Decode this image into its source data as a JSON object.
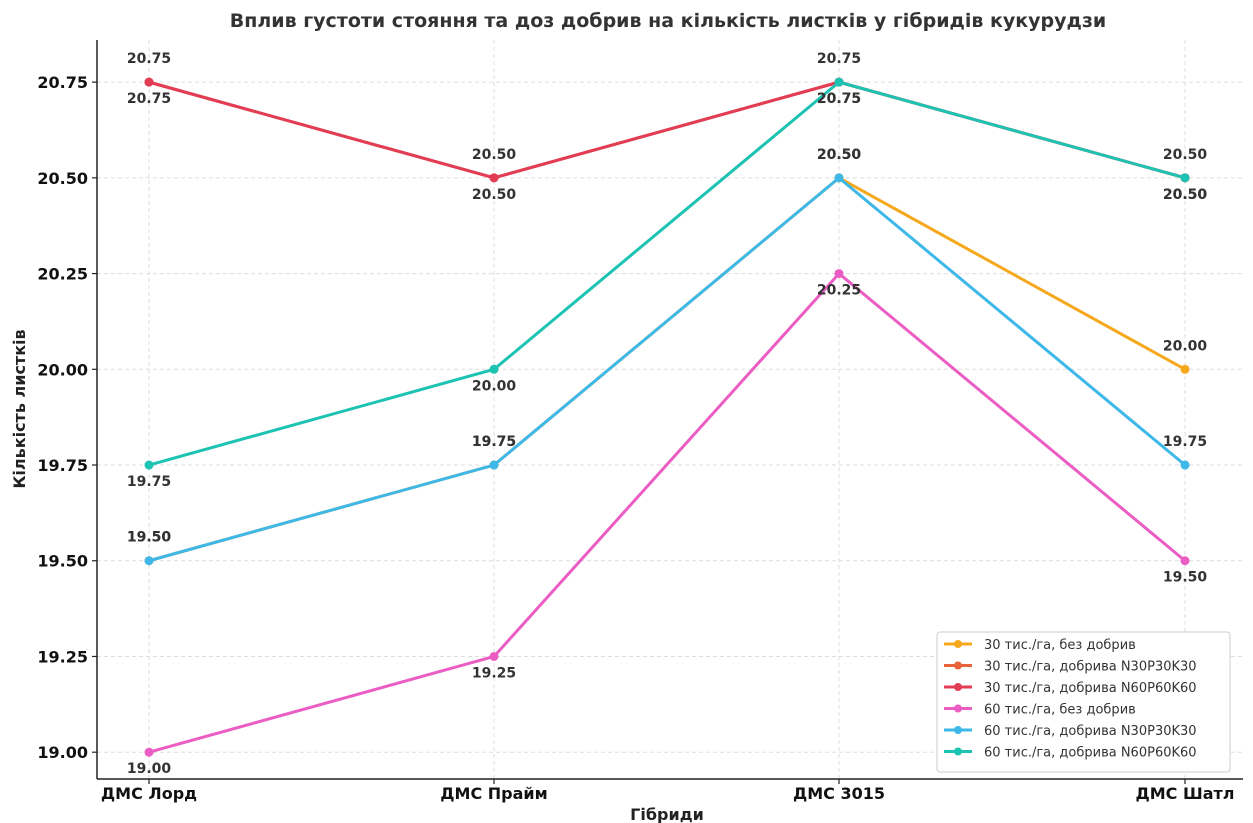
{
  "chart_data": {
    "type": "line",
    "title": "Вплив густоти стояння та доз добрив на кількість листків у гібридів кукурудзи",
    "xlabel": "Гібриди",
    "ylabel": "Кількість листків",
    "categories": [
      "ДМС Лорд",
      "ДМС Прайм",
      "ДМС 3015",
      "ДМС Шатл"
    ],
    "ylim": [
      18.93,
      20.86
    ],
    "yticks": [
      "19.00",
      "19.25",
      "19.50",
      "19.75",
      "20.00",
      "20.25",
      "20.50",
      "20.75"
    ],
    "grid": true,
    "legend_position": "bottom-right",
    "series": [
      {
        "name": "30 тис./га, без добрив",
        "color": "#f5a81c",
        "values": [
          19.5,
          19.75,
          20.5,
          20.0
        ]
      },
      {
        "name": "30 тис./га, добрива N30P30K30",
        "color": "#e8623a",
        "values": [
          20.75,
          20.5,
          20.75,
          20.5
        ]
      },
      {
        "name": "30 тис./га, добрива N60P60K60",
        "color": "#e23d55",
        "values": [
          20.75,
          20.5,
          20.75,
          20.5
        ]
      },
      {
        "name": "60 тис./га, без добрив",
        "color": "#ec5dc4",
        "values": [
          19.0,
          19.25,
          20.25,
          19.5
        ]
      },
      {
        "name": "60 тис./га, добрива N30P30K30",
        "color": "#3db8e8",
        "values": [
          19.5,
          19.75,
          20.5,
          19.75
        ]
      },
      {
        "name": "60 тис./га, добрива N60P60K60",
        "color": "#1cc3b2",
        "values": [
          19.75,
          20.0,
          20.75,
          20.5
        ]
      }
    ]
  }
}
